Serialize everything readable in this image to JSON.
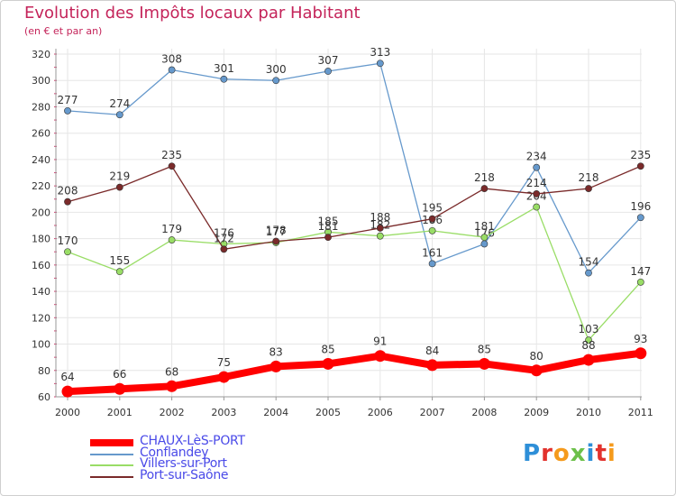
{
  "header": {
    "title": "Evolution des Impôts locaux par Habitant",
    "subtitle": "(en € et par an)"
  },
  "logo": {
    "text": "Proxiti",
    "letters": [
      "P",
      "r",
      "o",
      "x",
      "i",
      "t",
      "i"
    ],
    "colors": [
      "#2e8fd8",
      "#e2322d",
      "#f59a1c",
      "#6cc04a",
      "#2e8fd8",
      "#e2322d",
      "#f59a1c"
    ]
  },
  "chart_data": {
    "type": "line",
    "title": "Evolution des Impôts locaux par Habitant",
    "subtitle": "(en € et par an)",
    "xlabel": "",
    "ylabel": "",
    "categories": [
      "2000",
      "2001",
      "2002",
      "2003",
      "2004",
      "2005",
      "2006",
      "2007",
      "2008",
      "2009",
      "2010",
      "2011"
    ],
    "ylim": [
      60,
      320
    ],
    "yticks": [
      60,
      80,
      100,
      120,
      140,
      160,
      180,
      200,
      220,
      240,
      260,
      280,
      300,
      320
    ],
    "grid": true,
    "series": [
      {
        "name": "CHAUX-LèS-PORT",
        "color": "#ff0000",
        "values": [
          64,
          66,
          68,
          75,
          83,
          85,
          91,
          84,
          85,
          80,
          88,
          93
        ],
        "emphasis": true
      },
      {
        "name": "Conflandey",
        "color": "#6699cc",
        "values": [
          277,
          274,
          308,
          301,
          300,
          307,
          313,
          161,
          176,
          234,
          154,
          196
        ]
      },
      {
        "name": "Villers-sur-Port",
        "color": "#99dd66",
        "values": [
          170,
          155,
          179,
          176,
          177,
          185,
          182,
          186,
          181,
          204,
          103,
          147
        ]
      },
      {
        "name": "Port-sur-Saône",
        "color": "#7a2a2a",
        "values": [
          208,
          219,
          235,
          172,
          178,
          181,
          188,
          195,
          218,
          214,
          218,
          235
        ]
      }
    ]
  }
}
